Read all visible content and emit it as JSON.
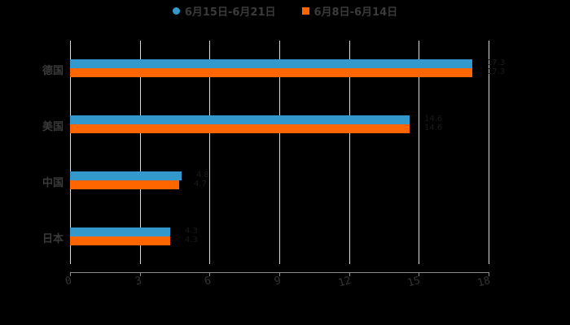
{
  "chart_data": {
    "type": "bar",
    "orientation": "horizontal",
    "title": "",
    "xlabel": "",
    "ylabel": "",
    "categories": [
      "德国",
      "美国",
      "中国",
      "日本"
    ],
    "series": [
      {
        "name": "6月15日-6月21日",
        "color": "#3399cc",
        "values": [
          17.3,
          14.6,
          4.8,
          4.3
        ]
      },
      {
        "name": "6月8日-6月14日",
        "color": "#ff6600",
        "values": [
          17.3,
          14.6,
          4.7,
          4.3
        ]
      }
    ],
    "xlim": [
      0,
      18
    ],
    "xticks": [
      "0",
      "3",
      "6",
      "9",
      "12",
      "15",
      "18"
    ],
    "grid": true,
    "legend_position": "top"
  },
  "legend": {
    "items": [
      {
        "label": "6月15日-6月21日",
        "color": "#3399cc",
        "marker": "circle"
      },
      {
        "label": "6月8日-6月14日",
        "color": "#ff6600",
        "marker": "square"
      }
    ]
  }
}
